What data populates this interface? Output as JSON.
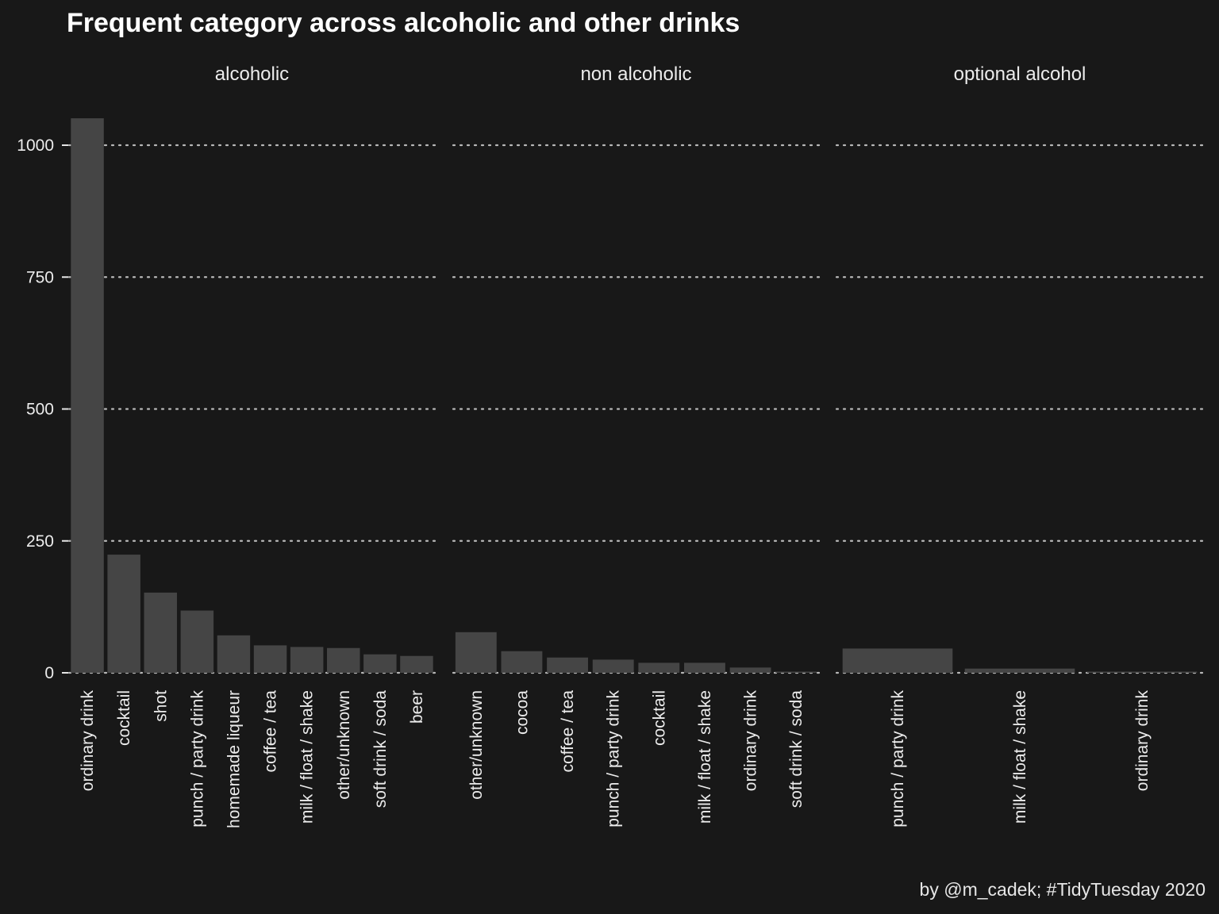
{
  "title": "Frequent category across alcoholic and other drinks",
  "caption": "by @m_cadek; #TidyTuesday 2020",
  "colors": {
    "background": "#181818",
    "bar": "#454545",
    "grid": "#b8b8b8",
    "text": "#ececec"
  },
  "chart_data": {
    "type": "bar",
    "title": "Frequent category across alcoholic and other drinks",
    "xlabel": "",
    "ylabel": "",
    "ylim": [
      0,
      1050
    ],
    "y_ticks": [
      0,
      250,
      500,
      750,
      1000
    ],
    "grid": "horizontal dotted",
    "legend": "none",
    "facets": [
      {
        "name": "alcoholic",
        "categories": [
          "ordinary drink",
          "cocktail",
          "shot",
          "punch / party drink",
          "homemade liqueur",
          "coffee / tea",
          "milk / float / shake",
          "other/unknown",
          "soft drink / soda",
          "beer"
        ],
        "values": [
          1051,
          224,
          152,
          118,
          71,
          52,
          49,
          47,
          35,
          32
        ]
      },
      {
        "name": "non alcoholic",
        "categories": [
          "other/unknown",
          "cocoa",
          "coffee / tea",
          "punch / party drink",
          "cocktail",
          "milk / float / shake",
          "ordinary drink",
          "soft drink / soda"
        ],
        "values": [
          77,
          41,
          29,
          25,
          19,
          19,
          10,
          2
        ]
      },
      {
        "name": "optional alcohol",
        "categories": [
          "punch / party drink",
          "milk / float / shake",
          "ordinary drink"
        ],
        "values": [
          46,
          8,
          2
        ]
      }
    ]
  }
}
